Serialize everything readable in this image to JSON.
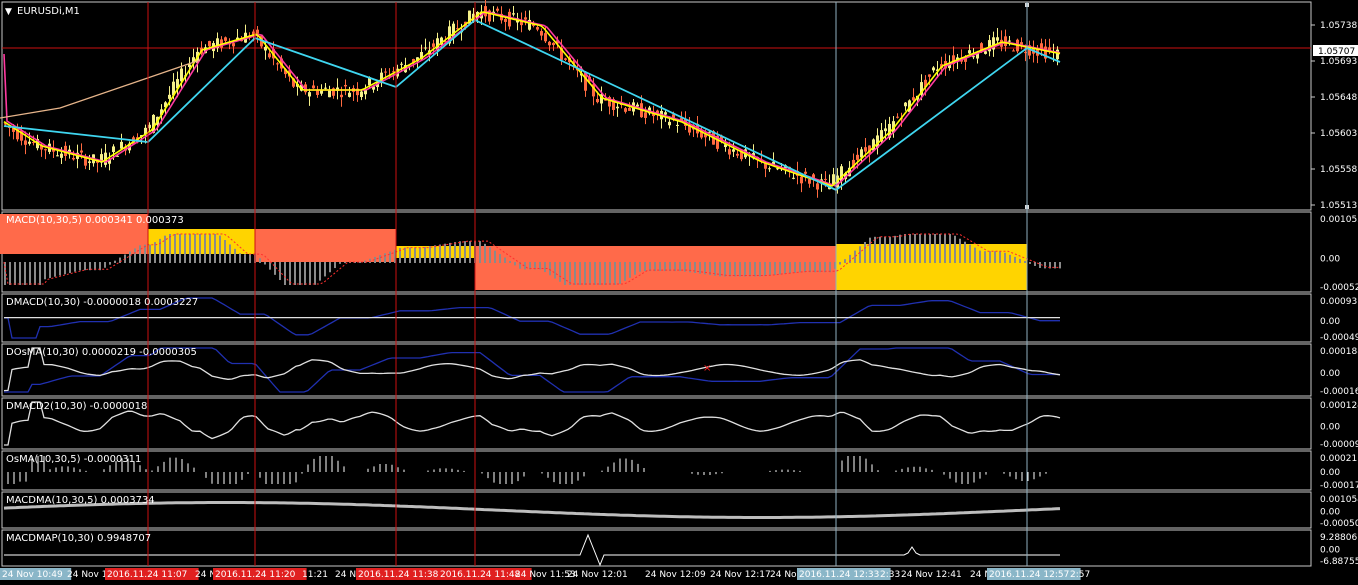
{
  "window": {
    "title": "EURUSDi,M1",
    "menu_icon": "triangle-down-icon"
  },
  "main": {
    "price_label": "1.05707",
    "scale": [
      "1.05738",
      "1.05693",
      "1.05648",
      "1.05603",
      "1.05558",
      "1.05513"
    ]
  },
  "panels": [
    {
      "key": "macd",
      "title": "MACD(10,30,5) 0.000341 0.000373",
      "scale": [
        "0.001055",
        "0.00",
        "-0.000527"
      ]
    },
    {
      "key": "dmacd",
      "title": "DMACD(10,30) -0.0000018 0.0003227",
      "scale": [
        "0.000937",
        "0.00",
        "-0.000496"
      ]
    },
    {
      "key": "dosma",
      "title": "DOsMA(10,30) 0.0000219 -0.0000305",
      "scale": [
        "0.000188",
        "0.00",
        "-0.00016"
      ]
    },
    {
      "key": "dmacd2",
      "title": "DMACD2(10,30) -0.0000018",
      "scale": [
        "0.000124",
        "0.00",
        "-0.000090"
      ]
    },
    {
      "key": "osma",
      "title": "OsMA(10,30,5) -0.0000311",
      "scale": [
        "0.000211",
        "0.00",
        "-0.000177"
      ]
    },
    {
      "key": "macdma",
      "title": "MACDMA(10,30,5) 0.0003734",
      "scale": [
        "0.001054",
        "0.00",
        "-0.000503"
      ]
    },
    {
      "key": "macdmap",
      "title": "MACDMAP(10,30) 0.9948707",
      "scale": [
        "9.288067",
        "0.00",
        "-6.887553"
      ]
    }
  ],
  "time_axis": [
    {
      "text": "24 Nov 10:49",
      "style": "cyan"
    },
    {
      "text": "24 Nov 1",
      "style": "plain"
    },
    {
      "text": "2016.11.24 11:07",
      "style": "red"
    },
    {
      "text": "24 N",
      "style": "plain"
    },
    {
      "text": "2016.11.24 11:20",
      "style": "red"
    },
    {
      "text": "11:21",
      "style": "plain"
    },
    {
      "text": "24 Nov",
      "style": "plain"
    },
    {
      "text": "2016.11.24 11:38",
      "style": "red"
    },
    {
      "text": "2016.11.24 11:48",
      "style": "red"
    },
    {
      "text": "24 Nov 11:53",
      "style": "plain"
    },
    {
      "text": "24 Nov 12:01",
      "style": "plain"
    },
    {
      "text": "24 Nov 12:09",
      "style": "plain"
    },
    {
      "text": "24 Nov 12:17",
      "style": "plain"
    },
    {
      "text": "24 No",
      "style": "plain"
    },
    {
      "text": "2016.11.24 12:33",
      "style": "cyan"
    },
    {
      "text": "2:33",
      "style": "plain"
    },
    {
      "text": "24 Nov 12:41",
      "style": "plain"
    },
    {
      "text": "24 No",
      "style": "plain"
    },
    {
      "text": "2016.11.24 12:57",
      "style": "cyan"
    },
    {
      "text": "2:57",
      "style": "plain"
    }
  ],
  "colors": {
    "bull": "#f5f08a",
    "bear": "#ff6a40",
    "ma_fast": "#ffff00",
    "ma_slow": "#ff3aa0",
    "trend": "#3fd6f0",
    "trend_old": "#e6b48a",
    "vline": "#cc1111",
    "vline_cyan": "#8fb0c0",
    "macd_red": "#ff6a4a",
    "macd_yellow": "#ffd400",
    "blue": "#2030b0",
    "white": "#e0e0e0"
  },
  "chart_data": [
    {
      "type": "line",
      "title": "EURUSDi,M1",
      "note": "candlestick price chart",
      "ylim": [
        1.055,
        1.0576
      ],
      "path_points": [
        [
          0,
          1.05612
        ],
        [
          40,
          1.0558
        ],
        [
          100,
          1.0556
        ],
        [
          150,
          1.056
        ],
        [
          200,
          1.057
        ],
        [
          255,
          1.0572
        ],
        [
          300,
          1.0565
        ],
        [
          360,
          1.0565
        ],
        [
          420,
          1.0569
        ],
        [
          480,
          1.05748
        ],
        [
          540,
          1.0573
        ],
        [
          600,
          1.0564
        ],
        [
          680,
          1.0561
        ],
        [
          760,
          1.0556
        ],
        [
          830,
          1.0553
        ],
        [
          890,
          1.056
        ],
        [
          940,
          1.0568
        ],
        [
          1000,
          1.0571
        ],
        [
          1060,
          1.05695
        ]
      ]
    },
    {
      "type": "bar",
      "title": "MACD(10,30,5) 0.000341 0.000373",
      "blocks": [
        {
          "from": 0,
          "to": 148,
          "color": "red"
        },
        {
          "from": 148,
          "to": 255,
          "color": "yellow"
        },
        {
          "from": 255,
          "to": 396,
          "color": "red"
        },
        {
          "from": 396,
          "to": 475,
          "color": "yellow"
        },
        {
          "from": 475,
          "to": 836,
          "color": "red"
        },
        {
          "from": 836,
          "to": 1027,
          "color": "yellow"
        }
      ]
    }
  ]
}
